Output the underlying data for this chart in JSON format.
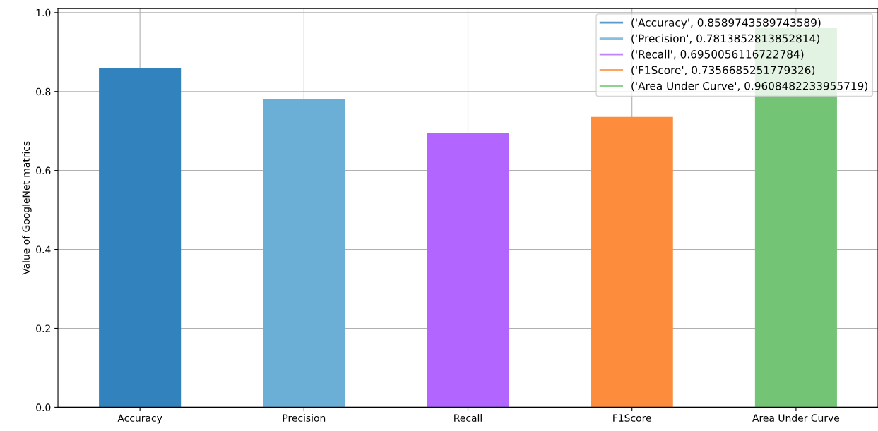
{
  "chart_data": {
    "type": "bar",
    "ylabel": "Value of GoogleNet matrics",
    "categories": [
      "Accuracy",
      "Precision",
      "Recall",
      "F1Score",
      "Area Under Curve"
    ],
    "series": [
      {
        "name": "('Accuracy', 0.8589743589743589)",
        "color": "#3182bd",
        "values": [
          0.8589743589743589,
          null,
          null,
          null,
          null
        ]
      },
      {
        "name": "('Precision', 0.7813852813852814)",
        "color": "#6baed6",
        "values": [
          null,
          0.7813852813852814,
          null,
          null,
          null
        ]
      },
      {
        "name": "('Recall', 0.6950056116722784)",
        "color": "#b266ff",
        "values": [
          null,
          null,
          0.6950056116722784,
          null,
          null
        ]
      },
      {
        "name": "('F1Score', 0.7356685251779326)",
        "color": "#fd8d3c",
        "values": [
          null,
          null,
          null,
          0.7356685251779326,
          null
        ]
      },
      {
        "name": "('Area Under Curve', 0.9608482233955719)",
        "color": "#74c476",
        "values": [
          null,
          null,
          null,
          null,
          0.9608482233955719
        ]
      }
    ],
    "ylim": [
      0,
      1.01
    ],
    "yticks": [
      {
        "value": 0,
        "label": "0.0"
      },
      0.2,
      0.4,
      0.6,
      0.8,
      {
        "value": 1,
        "label": "1.0"
      }
    ],
    "grid": true,
    "legend": "top right"
  }
}
